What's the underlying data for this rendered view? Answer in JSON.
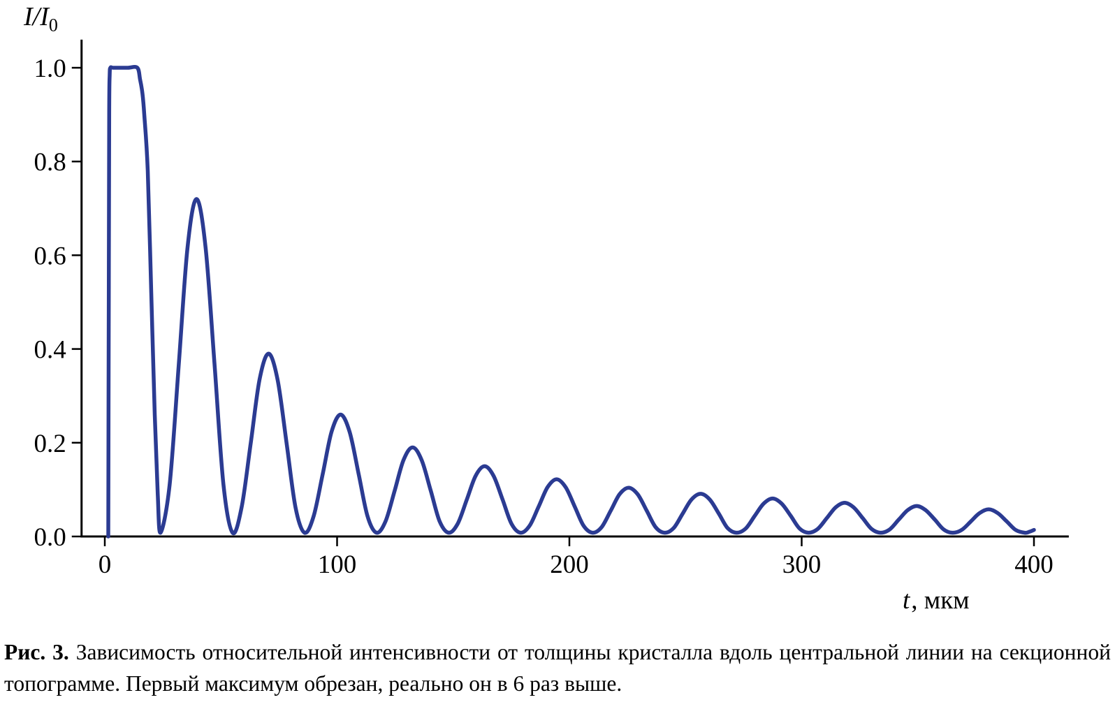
{
  "chart_data": {
    "type": "line",
    "title": "",
    "xlabel_variable": "t",
    "xlabel_unit": ", мкм",
    "ylabel_main": "I/I",
    "ylabel_sub": "0",
    "xlim": [
      -10,
      415
    ],
    "ylim": [
      0,
      1.06
    ],
    "grid": false,
    "legend": false,
    "axis_color": "#000000",
    "line_color": "#2b3b92",
    "x_ticks": [
      {
        "value": 0,
        "label": "0"
      },
      {
        "value": 100,
        "label": "100"
      },
      {
        "value": 200,
        "label": "200"
      },
      {
        "value": 300,
        "label": "300"
      },
      {
        "value": 400,
        "label": "400"
      }
    ],
    "y_ticks": [
      {
        "value": 0,
        "label": "0.0"
      },
      {
        "value": 0.2,
        "label": "0.2"
      },
      {
        "value": 0.4,
        "label": "0.4"
      },
      {
        "value": 0.6,
        "label": "0.6"
      },
      {
        "value": 0.8,
        "label": "0.8"
      },
      {
        "value": 1.0,
        "label": "1.0"
      }
    ],
    "notes": "First maximum is clipped at 1.0 (flat top, t ≈ 2–15 мкм); damped Pendellösung oscillations, period ≈ 31 мкм",
    "oscillation_period_um": 31,
    "peaks": [
      [
        39.5,
        0.72
      ],
      [
        70.5,
        0.39
      ],
      [
        101.5,
        0.26
      ],
      [
        132.5,
        0.19
      ],
      [
        163.5,
        0.15
      ],
      [
        194.5,
        0.122
      ],
      [
        225.5,
        0.104
      ],
      [
        256.5,
        0.091
      ],
      [
        287.5,
        0.081
      ],
      [
        318.5,
        0.072
      ],
      [
        349.5,
        0.065
      ],
      [
        380.5,
        0.058
      ]
    ],
    "series": [
      {
        "name": "relative intensity I/I0 vs crystal thickness t",
        "points": [
          [
            1.5,
            0
          ],
          [
            1.7,
            0.5
          ],
          [
            1.9,
            0.9
          ],
          [
            2.1,
            0.985
          ],
          [
            2.4,
            1
          ],
          [
            3.5,
            1
          ],
          [
            6,
            1
          ],
          [
            10,
            1
          ],
          [
            14,
            1
          ],
          [
            15.2,
            0.975
          ],
          [
            16.2,
            0.945
          ],
          [
            17,
            0.9
          ],
          [
            18.5,
            0.78
          ],
          [
            20,
            0.52
          ],
          [
            21.5,
            0.26
          ],
          [
            22.8,
            0.09
          ],
          [
            24,
            0.008
          ],
          [
            27.9,
            0.11
          ],
          [
            31.8,
            0.363
          ],
          [
            35.6,
            0.616
          ],
          [
            39.5,
            0.72
          ],
          [
            43.4,
            0.616
          ],
          [
            47.3,
            0.363
          ],
          [
            51.1,
            0.11
          ],
          [
            55,
            0.008
          ],
          [
            58.9,
            0.062
          ],
          [
            62.8,
            0.198
          ],
          [
            66.6,
            0.334
          ],
          [
            70.5,
            0.39
          ],
          [
            74.4,
            0.334
          ],
          [
            78.3,
            0.198
          ],
          [
            82.1,
            0.062
          ],
          [
            86,
            0.008
          ],
          [
            89.9,
            0.043
          ],
          [
            93.8,
            0.133
          ],
          [
            97.6,
            0.223
          ],
          [
            101.5,
            0.26
          ],
          [
            105.4,
            0.223
          ],
          [
            109.3,
            0.133
          ],
          [
            113.1,
            0.043
          ],
          [
            117,
            0.008
          ],
          [
            120.9,
            0.033
          ],
          [
            124.8,
            0.098
          ],
          [
            128.6,
            0.163
          ],
          [
            132.5,
            0.19
          ],
          [
            136.4,
            0.163
          ],
          [
            140.3,
            0.098
          ],
          [
            144.1,
            0.033
          ],
          [
            148,
            0.008
          ],
          [
            151.9,
            0.027
          ],
          [
            155.8,
            0.078
          ],
          [
            159.6,
            0.129
          ],
          [
            163.5,
            0.15
          ],
          [
            167.4,
            0.129
          ],
          [
            171.3,
            0.078
          ],
          [
            175.1,
            0.027
          ],
          [
            179,
            0.008
          ],
          [
            182.9,
            0.023
          ],
          [
            186.8,
            0.064
          ],
          [
            190.6,
            0.105
          ],
          [
            194.5,
            0.122
          ],
          [
            198.4,
            0.105
          ],
          [
            202.3,
            0.064
          ],
          [
            206.1,
            0.023
          ],
          [
            210,
            0.008
          ],
          [
            213.9,
            0.02
          ],
          [
            217.8,
            0.055
          ],
          [
            221.6,
            0.09
          ],
          [
            225.5,
            0.104
          ],
          [
            229.4,
            0.09
          ],
          [
            233.3,
            0.055
          ],
          [
            237.1,
            0.02
          ],
          [
            241,
            0.008
          ],
          [
            244.9,
            0.018
          ],
          [
            248.8,
            0.049
          ],
          [
            252.6,
            0.079
          ],
          [
            256.5,
            0.091
          ],
          [
            260.4,
            0.079
          ],
          [
            264.3,
            0.049
          ],
          [
            268.1,
            0.018
          ],
          [
            272,
            0.008
          ],
          [
            275.9,
            0.017
          ],
          [
            279.8,
            0.044
          ],
          [
            283.6,
            0.07
          ],
          [
            287.5,
            0.081
          ],
          [
            291.4,
            0.07
          ],
          [
            295.3,
            0.044
          ],
          [
            299.1,
            0.017
          ],
          [
            303,
            0.008
          ],
          [
            306.9,
            0.016
          ],
          [
            310.8,
            0.039
          ],
          [
            314.6,
            0.062
          ],
          [
            318.5,
            0.072
          ],
          [
            322.4,
            0.062
          ],
          [
            326.3,
            0.039
          ],
          [
            330.1,
            0.016
          ],
          [
            334,
            0.008
          ],
          [
            337.9,
            0.015
          ],
          [
            341.8,
            0.036
          ],
          [
            345.6,
            0.056
          ],
          [
            349.5,
            0.065
          ],
          [
            353.4,
            0.056
          ],
          [
            357.3,
            0.036
          ],
          [
            361.1,
            0.015
          ],
          [
            365,
            0.008
          ],
          [
            368.9,
            0.014
          ],
          [
            372.8,
            0.032
          ],
          [
            376.6,
            0.05
          ],
          [
            380.5,
            0.058
          ],
          [
            384.4,
            0.05
          ],
          [
            388.3,
            0.032
          ],
          [
            392.1,
            0.014
          ],
          [
            396,
            0.008
          ],
          [
            398,
            0.01
          ],
          [
            400,
            0.014
          ]
        ]
      }
    ]
  },
  "caption": {
    "label": "Рис. 3.",
    "text": "Зависимость относительной интенсивности от толщины кристалла вдоль центральной линии на секционной топограмме. Первый максимум обрезан, реально он в 6 раз выше."
  }
}
